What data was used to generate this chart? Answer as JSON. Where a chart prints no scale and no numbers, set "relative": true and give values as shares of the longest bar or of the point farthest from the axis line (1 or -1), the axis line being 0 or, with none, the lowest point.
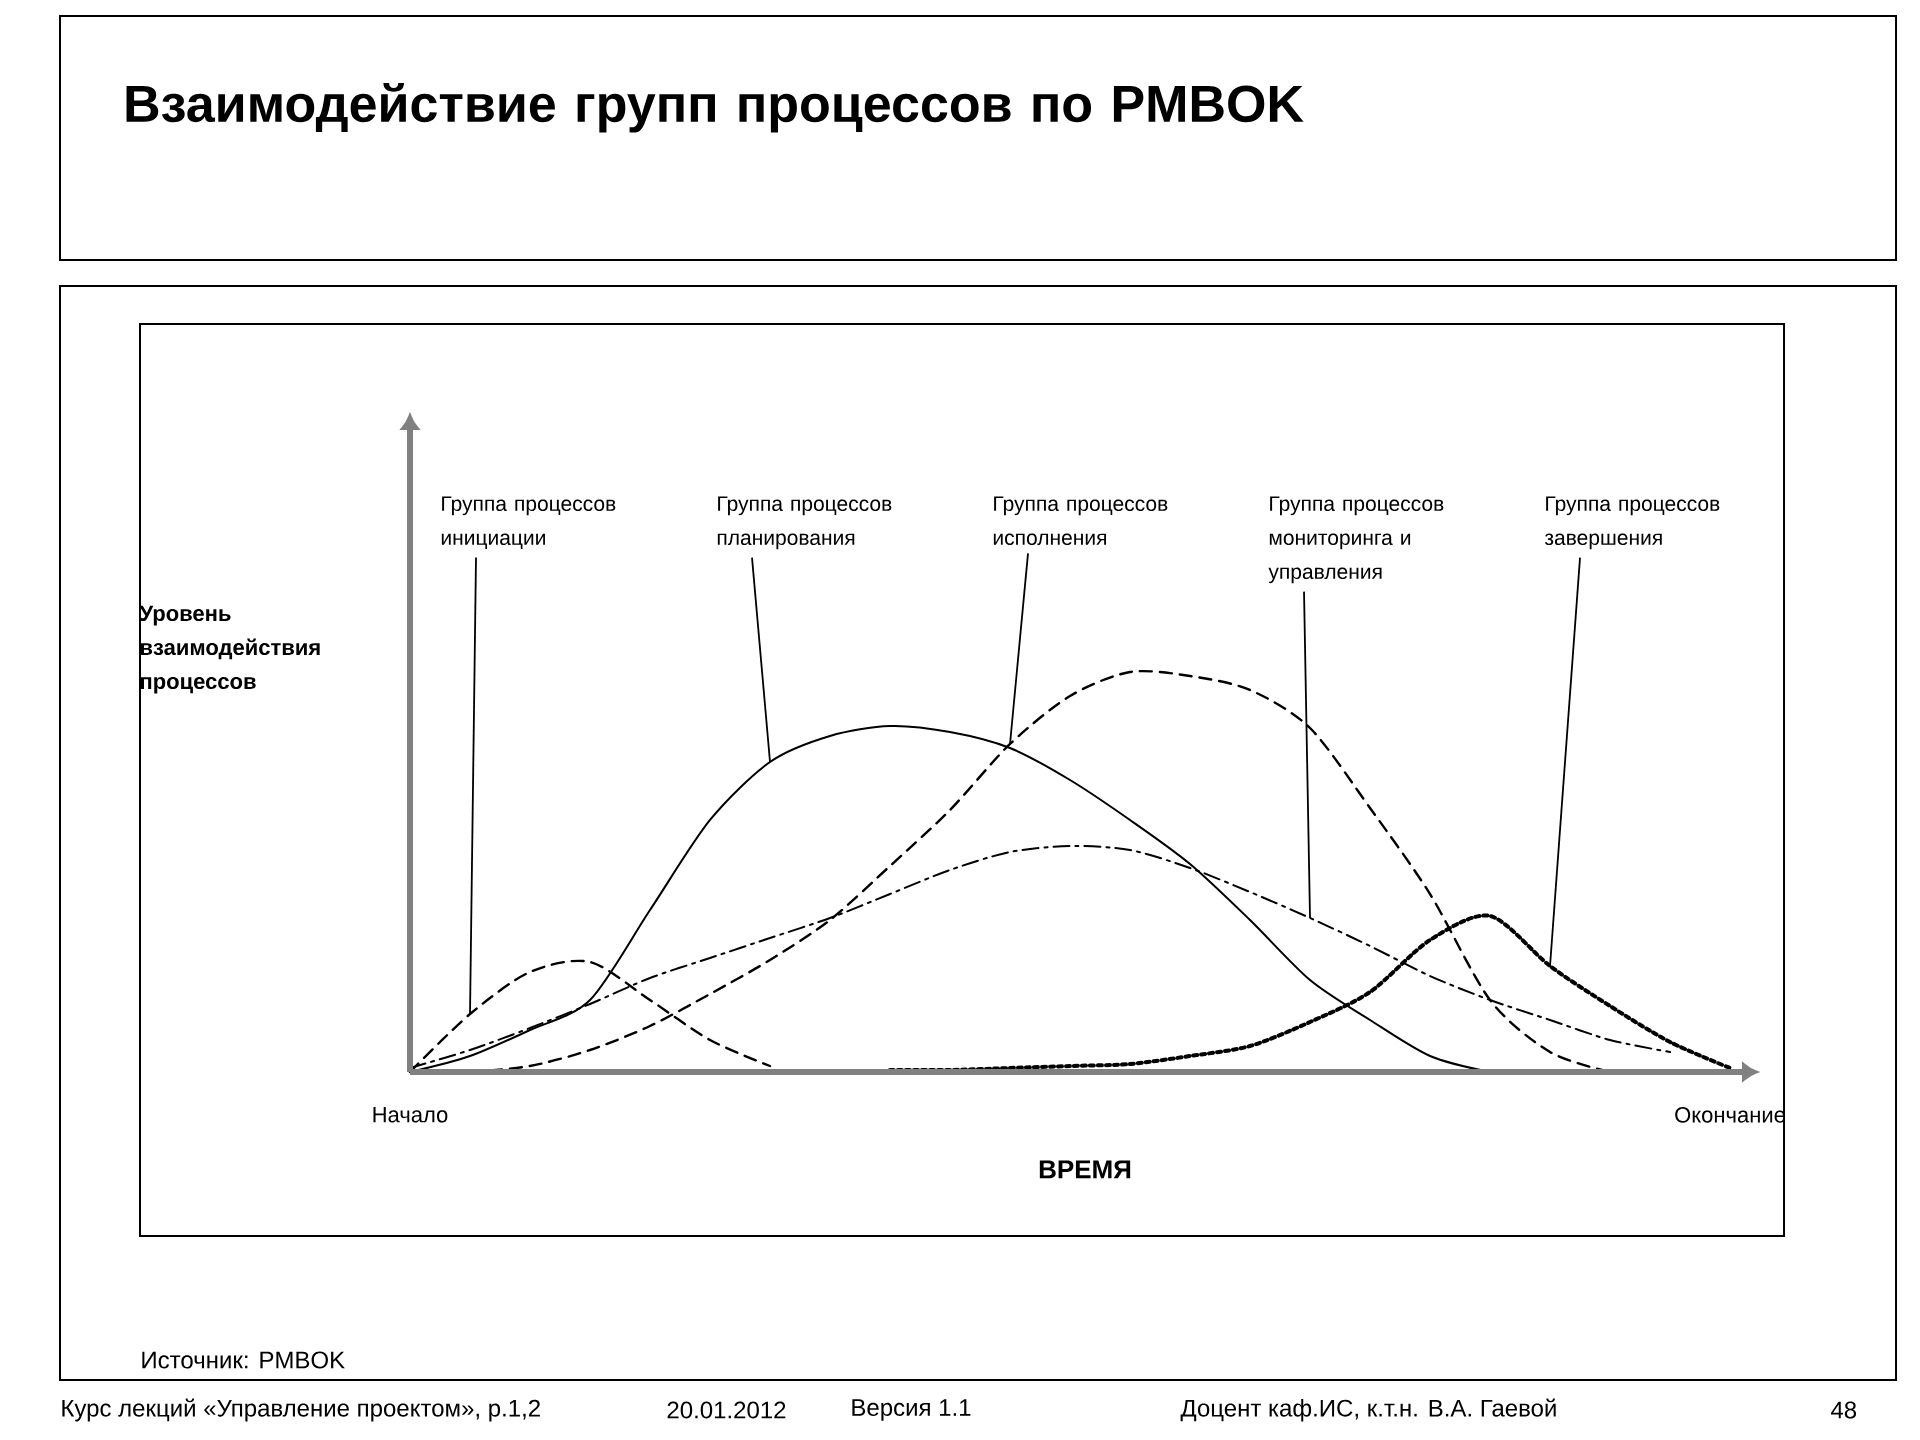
{
  "chart_data": {
    "type": "line",
    "title": "Взаимодействие групп процессов по PMBOK",
    "xlabel": "ВРЕМЯ",
    "ylabel": "Уровень взаимодействия процессов",
    "relative": true,
    "legend": false,
    "categories": [
      "Начало",
      null,
      null,
      null,
      null,
      null,
      null,
      null,
      null,
      null,
      null,
      null,
      null,
      null,
      null,
      null,
      null,
      null,
      null,
      null,
      null,
      null,
      "Окончание"
    ],
    "series": [
      {
        "name": "Группа процессов инициации",
        "color": "#000000",
        "line_style": "dashed",
        "values": [
          0,
          0.145,
          0.25,
          0.275,
          0.18,
          0.08,
          0.015,
          null,
          null,
          null,
          null,
          null,
          null,
          null,
          null,
          null,
          null,
          null,
          null,
          null,
          null,
          null,
          null
        ]
      },
      {
        "name": "Группа процессов планирования",
        "color": "#000000",
        "line_style": "solid",
        "values": [
          0,
          0.04,
          0.105,
          0.18,
          0.405,
          0.63,
          0.775,
          0.84,
          0.865,
          0.85,
          0.81,
          0.73,
          0.63,
          0.52,
          0.38,
          0.23,
          0.13,
          0.04,
          0,
          null,
          null,
          null,
          null
        ]
      },
      {
        "name": "Группа процессов исполнения",
        "color": "#000000",
        "line_style": "dashed",
        "values": [
          null,
          0,
          0.015,
          0.055,
          0.115,
          0.195,
          0.28,
          0.38,
          0.515,
          0.655,
          0.82,
          0.94,
          1,
          0.99,
          0.955,
          0.86,
          0.66,
          0.445,
          0.18,
          0.05,
          0,
          null,
          null
        ]
      },
      {
        "name": "Группа процессов мониторинга и управления",
        "color": "#000000",
        "line_style": "dashdot",
        "values": [
          0.01,
          0.055,
          0.11,
          0.17,
          0.235,
          0.285,
          0.335,
          0.385,
          0.445,
          0.505,
          0.55,
          0.565,
          0.555,
          0.51,
          0.45,
          0.385,
          0.315,
          0.24,
          0.18,
          0.13,
          0.08,
          0.05,
          null
        ]
      },
      {
        "name": "Группа процессов завершения",
        "color": "#000000",
        "line_style": "dotted",
        "values": [
          null,
          null,
          null,
          null,
          null,
          null,
          null,
          null,
          0.005,
          0.005,
          0.01,
          0.015,
          0.02,
          0.04,
          0.065,
          0.125,
          0.2,
          0.33,
          0.39,
          0.265,
          0.165,
          0.075,
          0.01
        ]
      }
    ],
    "annotations": [
      "Источник: PMBOK",
      "Курс лекций «Управление проектом», р.1,2",
      "20.01.2012",
      "Версия 1.1",
      "Доцент каф.ИС, к.т.н. В.А. Гаевой",
      "48"
    ]
  }
}
